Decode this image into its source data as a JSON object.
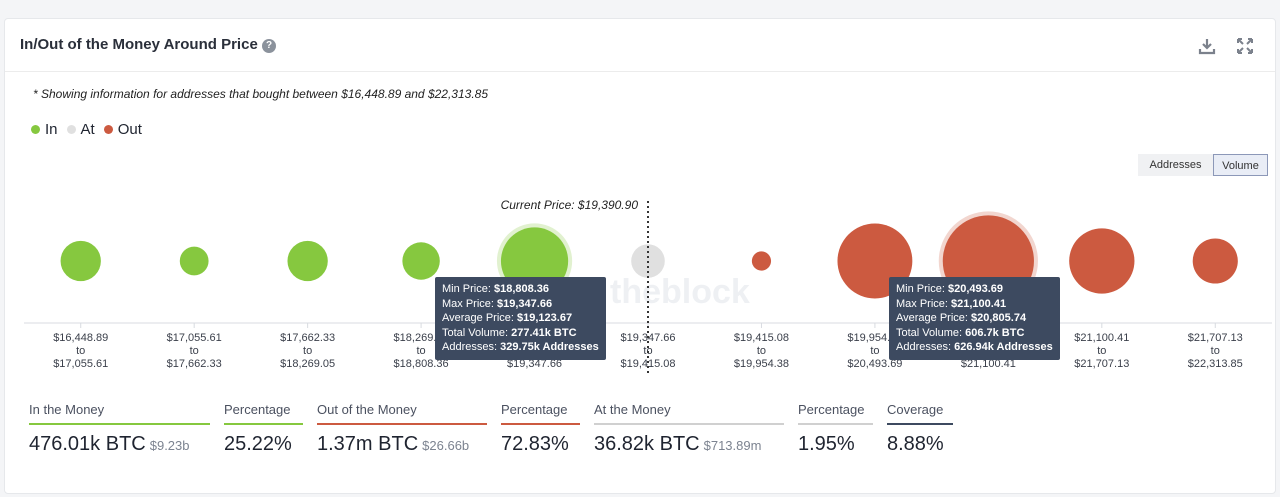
{
  "header": {
    "title": "In/Out of the Money Around Price"
  },
  "note": "* Showing information for addresses that bought between $16,448.89 and $22,313.85",
  "legend": [
    {
      "label": "In",
      "color": "#86c83f"
    },
    {
      "label": "At",
      "color": "#e0e0e0"
    },
    {
      "label": "Out",
      "color": "#cc5a40"
    }
  ],
  "toggle": {
    "addresses": "Addresses",
    "volume": "Volume",
    "active": "volume"
  },
  "current_price_label": "Current Price: $19,390.90",
  "watermark": "theblock",
  "chart_data": {
    "type": "bubble",
    "metric": "Volume",
    "current_price": 19390.9,
    "bins": [
      {
        "from": "$16,448.89",
        "to": "$17,055.61",
        "status": "in"
      },
      {
        "from": "$17,055.61",
        "to": "$17,662.33",
        "status": "in"
      },
      {
        "from": "$17,662.33",
        "to": "$18,269.05",
        "status": "in"
      },
      {
        "from": "$18,269.05",
        "to": "$18,808.36",
        "status": "in"
      },
      {
        "from": "$18,808.36",
        "to": "$19,347.66",
        "status": "in",
        "volume_k_btc": 277.41,
        "addresses_k": 329.75
      },
      {
        "from": "$19,347.66",
        "to": "$19,415.08",
        "status": "at"
      },
      {
        "from": "$19,415.08",
        "to": "$19,954.38",
        "status": "out"
      },
      {
        "from": "$19,954.38",
        "to": "$20,493.69",
        "status": "out"
      },
      {
        "from": "$20,493.69",
        "to": "$21,100.41",
        "status": "out",
        "volume_k_btc": 606.7,
        "addresses_k": 626.94
      },
      {
        "from": "$21,100.41",
        "to": "$21,707.13",
        "status": "out"
      },
      {
        "from": "$21,707.13",
        "to": "$22,313.85",
        "status": "out"
      }
    ],
    "relative_size": [
      0.42,
      0.3,
      0.42,
      0.39,
      0.7,
      0.35,
      0.2,
      0.78,
      0.95,
      0.68,
      0.47
    ],
    "to_word": "to"
  },
  "tooltips": [
    {
      "min_label": "Min Price: ",
      "min": "$18,808.36",
      "max_label": "Max Price: ",
      "max": "$19,347.66",
      "avg_label": "Average Price: ",
      "avg": "$19,123.67",
      "vol_label": "Total Volume: ",
      "vol": "277.41k BTC",
      "addr_label": "Addresses: ",
      "addr": "329.75k Addresses"
    },
    {
      "min_label": "Min Price: ",
      "min": "$20,493.69",
      "max_label": "Max Price: ",
      "max": "$21,100.41",
      "avg_label": "Average Price: ",
      "avg": "$20,805.74",
      "vol_label": "Total Volume: ",
      "vol": "606.7k BTC",
      "addr_label": "Addresses: ",
      "addr": "626.94k Addresses"
    }
  ],
  "stats": [
    {
      "label": "In the Money",
      "value": "476.01k BTC",
      "sub": "$9.23b",
      "color": "#86c83f"
    },
    {
      "label": "Percentage",
      "value": "25.22%",
      "sub": "",
      "color": "#86c83f"
    },
    {
      "label": "Out of the Money",
      "value": "1.37m BTC",
      "sub": "$26.66b",
      "color": "#cc5a40"
    },
    {
      "label": "Percentage",
      "value": "72.83%",
      "sub": "",
      "color": "#cc5a40"
    },
    {
      "label": "At the Money",
      "value": "36.82k BTC",
      "sub": "$713.89m",
      "color": "#d0d0d0"
    },
    {
      "label": "Percentage",
      "value": "1.95%",
      "sub": "",
      "color": "#d0d0d0"
    },
    {
      "label": "Coverage",
      "value": "8.88%",
      "sub": "",
      "color": "#3d4a60"
    }
  ]
}
